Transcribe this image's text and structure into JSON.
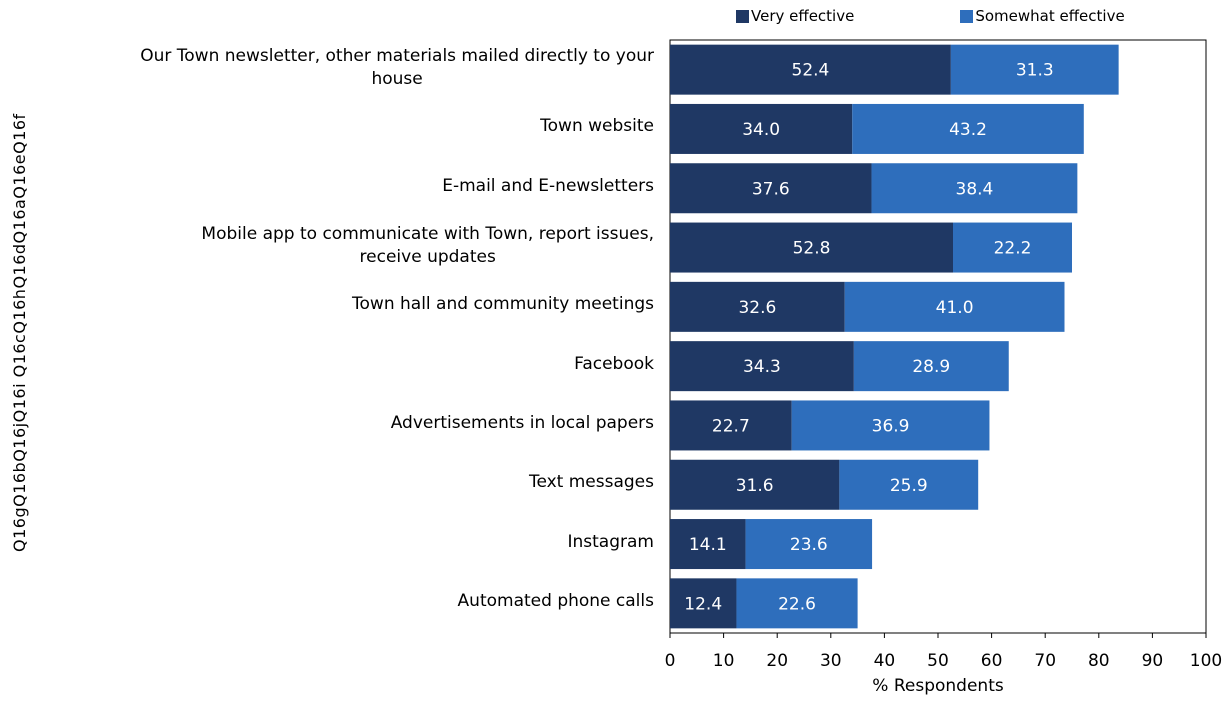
{
  "chart_data": {
    "type": "bar",
    "orientation": "horizontal",
    "stacked": true,
    "categories": [
      "Our Town newsletter, other materials mailed directly to your house",
      "Town website",
      "E-mail and E-newsletters",
      "Mobile app to communicate with Town, report issues, receive updates",
      "Town hall and community meetings",
      "Facebook",
      "Advertisements in local papers",
      "Text messages",
      "Instagram",
      "Automated phone calls"
    ],
    "category_codes": [
      "Q16f",
      "Q16e",
      "Q16a",
      "Q16d",
      "Q16h",
      "Q16c",
      "Q16i",
      "Q16j",
      "Q16b",
      "Q16g"
    ],
    "series": [
      {
        "name": "Very effective",
        "color": "#1f3864",
        "values": [
          52.4,
          34.0,
          37.6,
          52.8,
          32.6,
          34.3,
          22.7,
          31.6,
          14.1,
          12.4
        ]
      },
      {
        "name": "Somewhat effective",
        "color": "#2e6ebc",
        "values": [
          31.3,
          43.2,
          38.4,
          22.2,
          41.0,
          28.9,
          36.9,
          25.9,
          23.6,
          22.6
        ]
      }
    ],
    "xlabel": "% Respondents",
    "xlim": [
      0,
      100
    ],
    "xticks": [
      "0",
      "10",
      "20",
      "30",
      "40",
      "50",
      "60",
      "70",
      "80",
      "90",
      "100"
    ],
    "ylabel": "Q16gQ16bQ16jQ16i Q16cQ16hQ16dQ16aQ16eQ16f",
    "legend": "top",
    "grid": false
  },
  "category_label_lines": [
    [
      "Our Town newsletter, other materials mailed directly to your",
      "house"
    ],
    [
      "Town website"
    ],
    [
      "E-mail and E-newsletters"
    ],
    [
      "Mobile app to communicate with Town, report issues,",
      "receive updates"
    ],
    [
      "Town hall and community meetings"
    ],
    [
      "Facebook"
    ],
    [
      "Advertisements in local papers"
    ],
    [
      "Text messages"
    ],
    [
      "Instagram"
    ],
    [
      "Automated phone calls"
    ]
  ]
}
